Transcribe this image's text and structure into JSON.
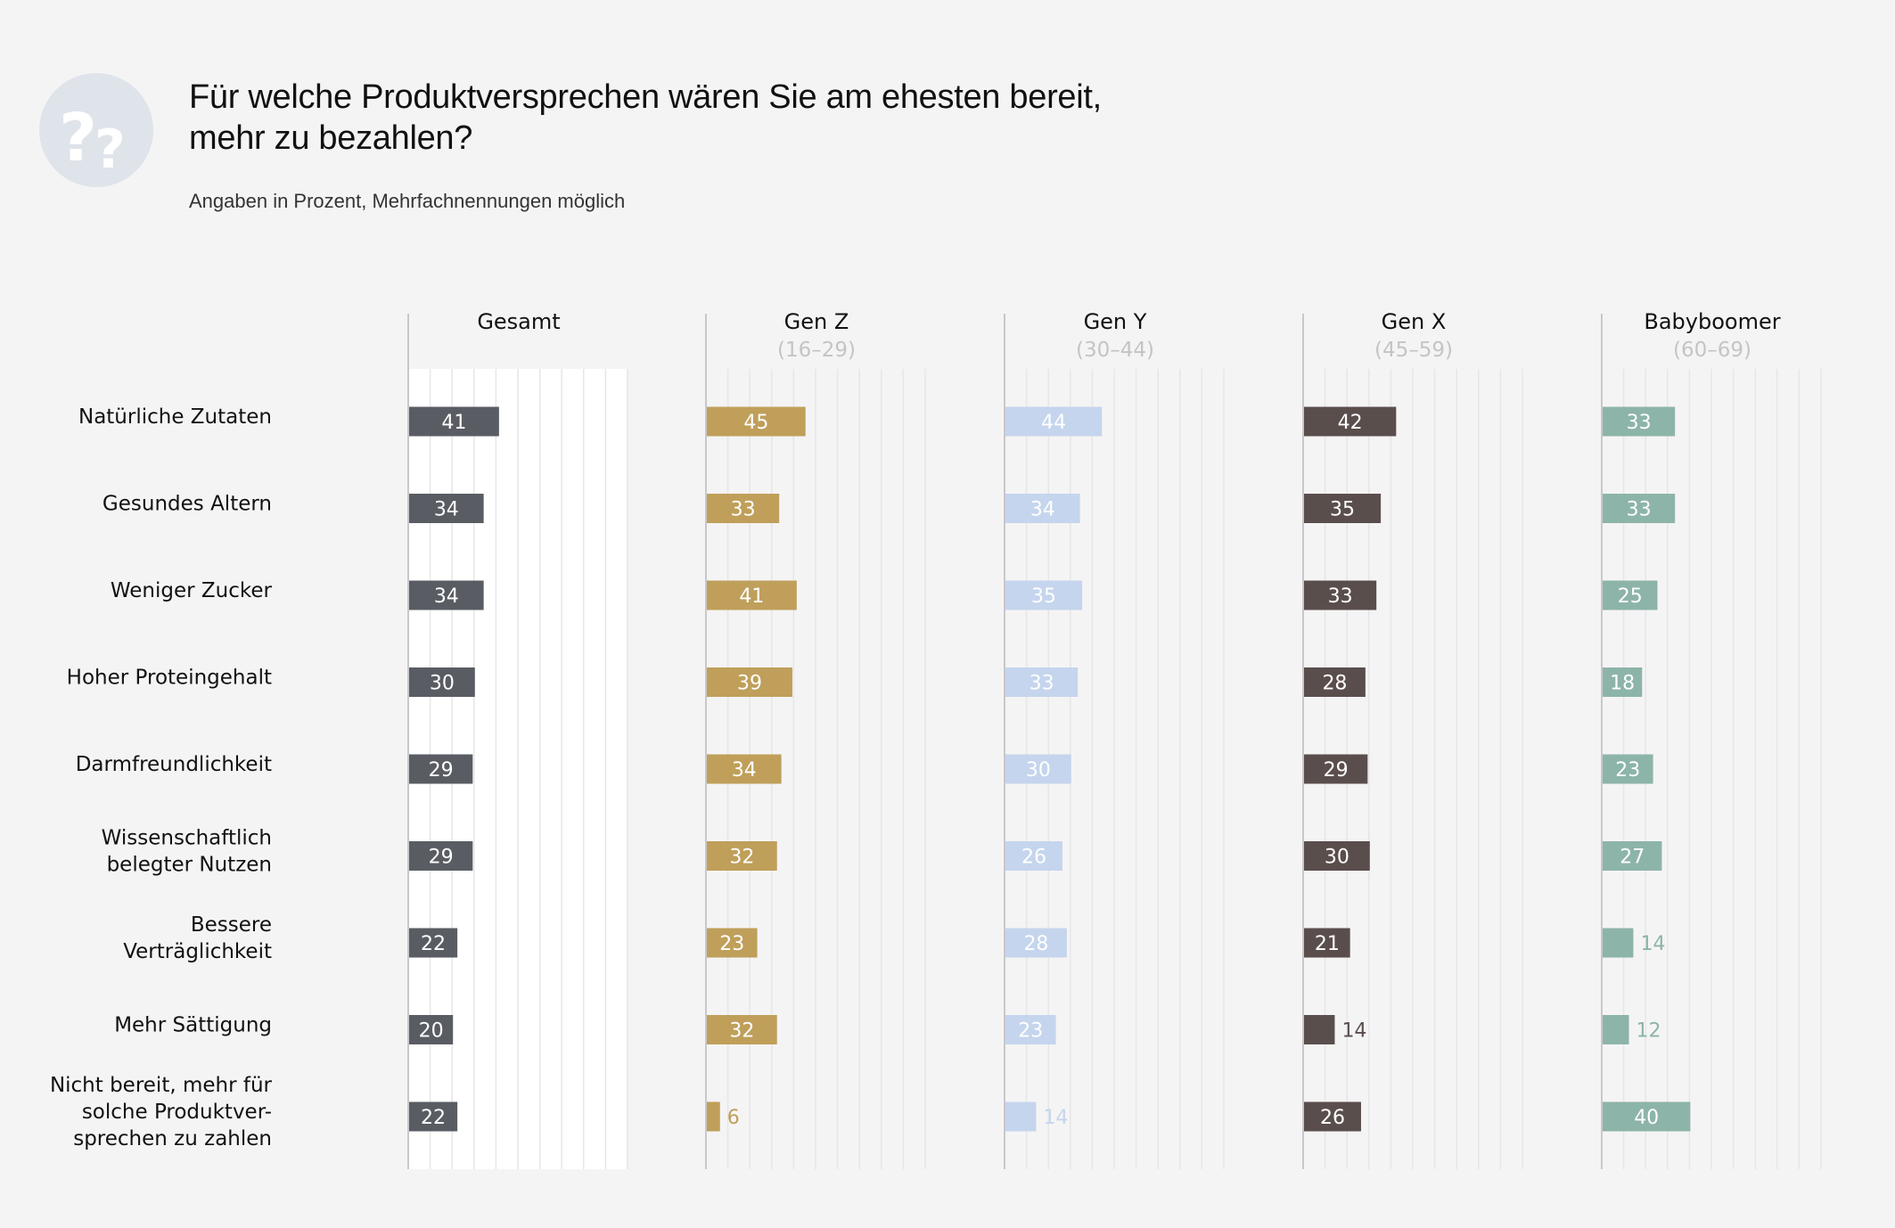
{
  "title": "Für welche Produktversprechen wären Sie am ehesten bereit, mehr zu bezahlen?",
  "subtitle": "Angaben in Prozent, Mehrfachnennungen möglich",
  "icon": "question-marks-icon",
  "chart_data": {
    "type": "bar",
    "orientation": "horizontal",
    "categories": [
      "Natürliche Zutaten",
      "Gesundes Altern",
      "Weniger Zucker",
      "Hoher Proteingehalt",
      "Darmfreundlichkeit",
      "Wissenschaftlich belegter Nutzen",
      "Bessere Verträglichkeit",
      "Mehr Sättigung",
      "Nicht bereit, mehr für solche Produktversprechen zu zahlen"
    ],
    "category_lines": [
      [
        "Natürliche Zutaten"
      ],
      [
        "Gesundes Altern"
      ],
      [
        "Weniger Zucker"
      ],
      [
        "Hoher Proteingehalt"
      ],
      [
        "Darmfreundlichkeit"
      ],
      [
        "Wissenschaftlich",
        "belegter Nutzen"
      ],
      [
        "Bessere",
        "Verträglichkeit"
      ],
      [
        "Mehr Sättigung"
      ],
      [
        "Nicht bereit, mehr für",
        "solche Produktver-",
        "sprechen zu zahlen"
      ]
    ],
    "series": [
      {
        "name": "Gesamt",
        "subtitle": "",
        "color": "#595d63",
        "values": [
          41,
          34,
          34,
          30,
          29,
          29,
          22,
          20,
          22
        ]
      },
      {
        "name": "Gen Z",
        "subtitle": "(16–29)",
        "color": "#bf9f5a",
        "values": [
          45,
          33,
          41,
          39,
          34,
          32,
          23,
          32,
          6
        ]
      },
      {
        "name": "Gen Y",
        "subtitle": "(30–44)",
        "color": "#c5d5ed",
        "values": [
          44,
          34,
          35,
          33,
          30,
          26,
          28,
          23,
          14
        ]
      },
      {
        "name": "Gen X",
        "subtitle": "(45–59)",
        "color": "#5a4e4d",
        "values": [
          42,
          35,
          33,
          28,
          29,
          30,
          21,
          14,
          26
        ]
      },
      {
        "name": "Babyboomer",
        "subtitle": "(60–69)",
        "color": "#8db4a9",
        "values": [
          33,
          33,
          25,
          18,
          23,
          27,
          14,
          12,
          40
        ]
      }
    ],
    "xlim": [
      0,
      100
    ],
    "grid": true,
    "highlight_panel": "Gesamt"
  }
}
